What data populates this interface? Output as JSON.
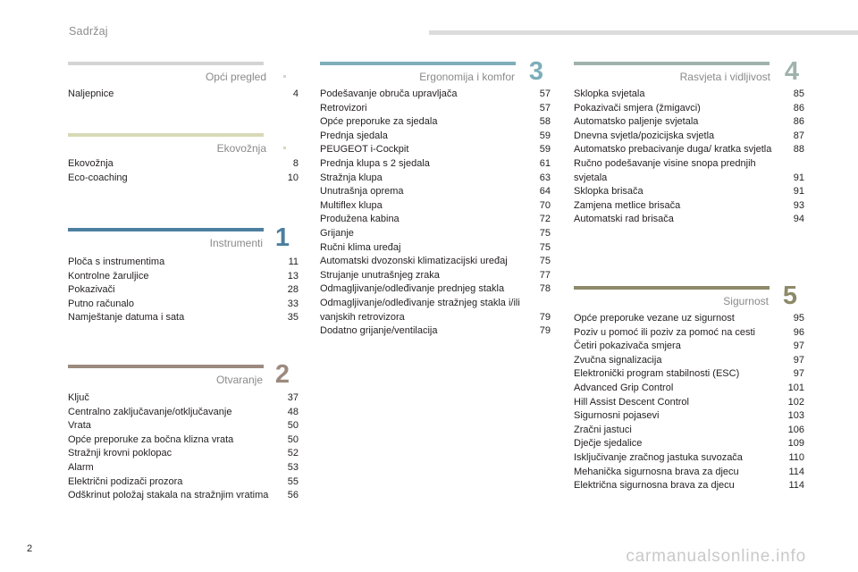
{
  "header": {
    "title": "Sadržaj"
  },
  "page_number": "2",
  "watermark": "carmanualsonline.info",
  "colors": {
    "opci": "#d4d4d4",
    "eko": "#d8d9b6",
    "instrumenti": "#4c7f9f",
    "otvaranje": "#9c8a7e",
    "ergonomija": "#7daeb9",
    "rasvjeta": "#9fb3ac",
    "sigurnost": "#8e8a69"
  },
  "sections": {
    "opci": {
      "title": "Opći pregled",
      "number": "",
      "entries": [
        {
          "label": "Naljepnice",
          "page": "4"
        }
      ]
    },
    "eko": {
      "title": "Ekovožnja",
      "number": "",
      "entries": [
        {
          "label": "Ekovožnja",
          "page": "8"
        },
        {
          "label": "Eco-coaching",
          "page": "10"
        }
      ]
    },
    "instrumenti": {
      "title": "Instrumenti",
      "number": "1",
      "entries": [
        {
          "label": "Ploča s instrumentima",
          "page": "11"
        },
        {
          "label": "Kontrolne žaruljice",
          "page": "13"
        },
        {
          "label": "Pokazivači",
          "page": "28"
        },
        {
          "label": "Putno računalo",
          "page": "33"
        },
        {
          "label": "Namještanje datuma i sata",
          "page": "35"
        }
      ]
    },
    "otvaranje": {
      "title": "Otvaranje",
      "number": "2",
      "entries": [
        {
          "label": "Ključ",
          "page": "37"
        },
        {
          "label": "Centralno zaključavanje/otključavanje",
          "page": "48"
        },
        {
          "label": "Vrata",
          "page": "50"
        },
        {
          "label": "Opće preporuke za bočna klizna vrata",
          "page": "50"
        },
        {
          "label": "Stražnji krovni poklopac",
          "page": "52"
        },
        {
          "label": "Alarm",
          "page": "53"
        },
        {
          "label": "Električni podizači prozora",
          "page": "55"
        },
        {
          "label": "Odškrinut položaj stakala na stražnjim vratima",
          "page": "56"
        }
      ]
    },
    "ergonomija": {
      "title": "Ergonomija i komfor",
      "number": "3",
      "entries": [
        {
          "label": "Podešavanje obruča upravljača",
          "page": "57"
        },
        {
          "label": "Retrovizori",
          "page": "57"
        },
        {
          "label": "Opće preporuke za sjedala",
          "page": "58"
        },
        {
          "label": "Prednja sjedala",
          "page": "59"
        },
        {
          "label": "PEUGEOT i-Cockpit",
          "page": "59"
        },
        {
          "label": "Prednja klupa s 2 sjedala",
          "page": "61"
        },
        {
          "label": "Stražnja klupa",
          "page": "63"
        },
        {
          "label": "Unutrašnja oprema",
          "page": "64"
        },
        {
          "label": "Multiflex klupa",
          "page": "70"
        },
        {
          "label": "Produžena kabina",
          "page": "72"
        },
        {
          "label": "Grijanje",
          "page": "75"
        },
        {
          "label": "Ručni klima uređaj",
          "page": "75"
        },
        {
          "label": "Automatski dvozonski klimatizacijski uređaj",
          "page": "75"
        },
        {
          "label": "Strujanje unutrašnjeg zraka",
          "page": "77"
        },
        {
          "label": "Odmagljivanje/odleđivanje prednjeg stakla",
          "page": "78"
        },
        {
          "label": "Odmagljivanje/odleđivanje stražnjeg stakla i/ili vanjskih retrovizora",
          "page": "79"
        },
        {
          "label": "Dodatno grijanje/ventilacija",
          "page": "79"
        }
      ]
    },
    "rasvjeta": {
      "title": "Rasvjeta i vidljivost",
      "number": "4",
      "entries": [
        {
          "label": "Sklopka svjetala",
          "page": "85"
        },
        {
          "label": "Pokazivači smjera (žmigavci)",
          "page": "86"
        },
        {
          "label": "Automatsko paljenje svjetala",
          "page": "86"
        },
        {
          "label": "Dnevna svjetla/pozicijska svjetla",
          "page": "87"
        },
        {
          "label": "Automatsko prebacivanje duga/ kratka svjetla",
          "page": "88"
        },
        {
          "label": "Ručno podešavanje visine snopa prednjih svjetala",
          "page": "91"
        },
        {
          "label": "Sklopka brisača",
          "page": "91"
        },
        {
          "label": "Zamjena metlice brisača",
          "page": "93"
        },
        {
          "label": "Automatski rad brisača",
          "page": "94"
        }
      ]
    },
    "sigurnost": {
      "title": "Sigurnost",
      "number": "5",
      "entries": [
        {
          "label": "Opće preporuke vezane uz sigurnost",
          "page": "95"
        },
        {
          "label": "Poziv u pomoć ili poziv za pomoć na cesti",
          "page": "96"
        },
        {
          "label": "Četiri pokazivača smjera",
          "page": "97"
        },
        {
          "label": "Zvučna signalizacija",
          "page": "97"
        },
        {
          "label": "Elektronički program stabilnosti (ESC)",
          "page": "97"
        },
        {
          "label": "Advanced Grip Control",
          "page": "101"
        },
        {
          "label": "Hill Assist Descent Control",
          "page": "102"
        },
        {
          "label": "Sigurnosni pojasevi",
          "page": "103"
        },
        {
          "label": "Zračni jastuci",
          "page": "106"
        },
        {
          "label": "Dječje sjedalice",
          "page": "109"
        },
        {
          "label": "Isključivanje zračnog jastuka suvozača",
          "page": "110"
        },
        {
          "label": "Mehanička sigurnosna brava za djecu",
          "page": "114"
        },
        {
          "label": "Električna sigurnosna brava za djecu",
          "page": "114"
        }
      ]
    }
  }
}
